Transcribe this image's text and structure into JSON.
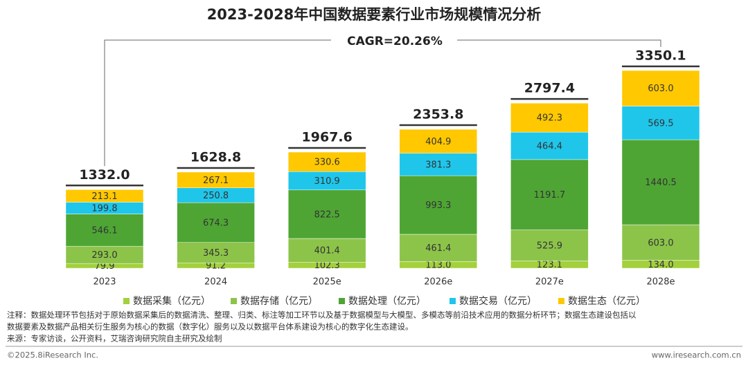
{
  "chart_data": {
    "type": "stacked_bar",
    "title": "2023-2028年中国数据要素行业市场规模情况分析",
    "annotation": "CAGR=20.26%",
    "categories": [
      "2023",
      "2024",
      "2025e",
      "2026e",
      "2027e",
      "2028e"
    ],
    "series": [
      {
        "name": "数据采集（亿元）",
        "color": "#a3d03c",
        "values": [
          79.9,
          91.2,
          102.3,
          113.0,
          123.1,
          134.0
        ],
        "value_labels": [
          "79.9",
          "91.2",
          "102.3",
          "113.0",
          "123.1",
          "134.0"
        ]
      },
      {
        "name": "数据存储（亿元）",
        "color": "#8cc44a",
        "values": [
          293.0,
          345.3,
          401.4,
          461.4,
          525.9,
          603.0
        ],
        "value_labels": [
          "293.0",
          "345.3",
          "401.4",
          "461.4",
          "525.9",
          "603.0"
        ]
      },
      {
        "name": "数据处理（亿元）",
        "color": "#4ea534",
        "values": [
          546.1,
          674.3,
          822.5,
          993.3,
          1191.7,
          1440.5
        ],
        "value_labels": [
          "546.1",
          "674.3",
          "822.5",
          "993.3",
          "1191.7",
          "1440.5"
        ]
      },
      {
        "name": "数据交易（亿元）",
        "color": "#1fc6ea",
        "values": [
          199.8,
          250.8,
          310.9,
          381.3,
          464.4,
          569.5
        ],
        "value_labels": [
          "199.8",
          "250.8",
          "310.9",
          "381.3",
          "464.4",
          "569.5"
        ]
      },
      {
        "name": "数据生态（亿元）",
        "color": "#ffc800",
        "values": [
          213.1,
          267.1,
          330.6,
          404.9,
          492.3,
          603.0
        ],
        "value_labels": [
          "213.1",
          "267.1",
          "330.6",
          "404.9",
          "492.3",
          "603.0"
        ]
      }
    ],
    "totals": {
      "values": [
        1332.0,
        1628.8,
        1967.6,
        2353.8,
        2797.4,
        3350.1
      ],
      "value_labels": [
        "1332.0",
        "1628.8",
        "1967.6",
        "2353.8",
        "2797.4",
        "3350.1"
      ]
    }
  },
  "notes": [
    "注释：数据处理环节包括对于原始数据采集后的数据清洗、整理、归类、标注等加工环节以及基于数据模型与大模型、多模态等前沿技术应用的数据分析环节；数据生态建设包括以",
    "数据要素及数据产品相关衍生服务为核心的数据（数字化）服务以及以数据平台体系建设为核心的数字化生态建设。",
    "来源：专家访谈，公开资料，艾瑞咨询研究院自主研究及绘制"
  ],
  "footer": {
    "left": "©2025.8iResearch Inc.",
    "right": "www.iresearch.com.cn"
  }
}
